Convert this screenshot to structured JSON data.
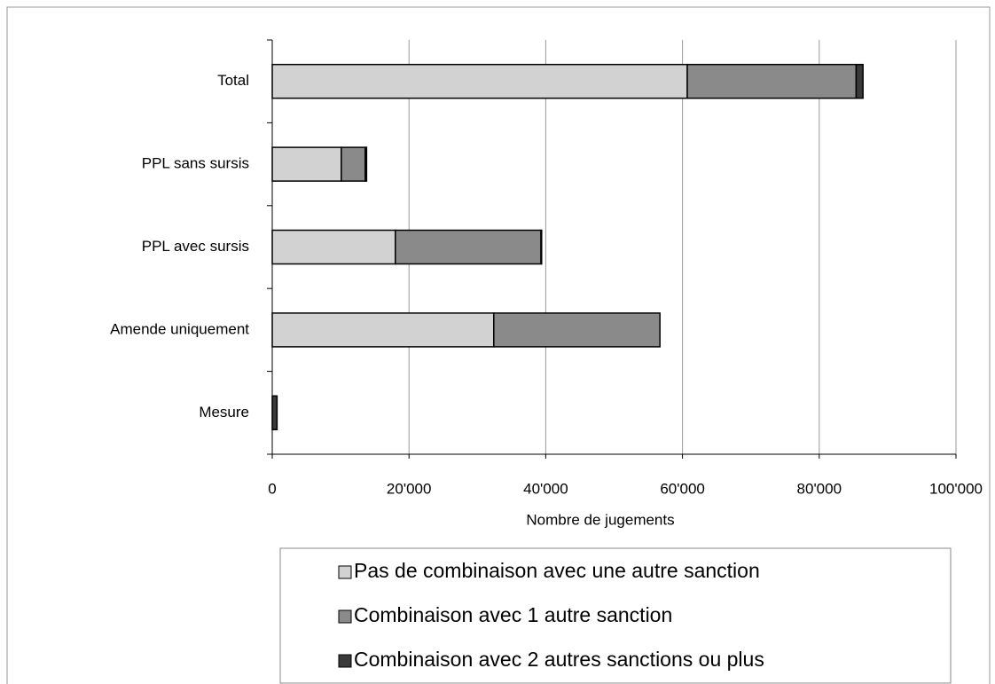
{
  "chart_data": {
    "type": "bar",
    "orientation": "horizontal",
    "stacked": true,
    "x_label": "Nombre de jugements",
    "categories": [
      "Total",
      "PPL sans sursis",
      "PPL avec sursis",
      "Amende uniquement",
      "Mesure"
    ],
    "series": [
      {
        "name": "Pas de combinaison avec une autre sanction",
        "color": "#d2d2d2",
        "values": [
          60700,
          10100,
          18000,
          32400,
          0
        ]
      },
      {
        "name": "Combinaison avec 1 autre sanction",
        "color": "#8a8a8a",
        "values": [
          24700,
          3500,
          21300,
          24300,
          0
        ]
      },
      {
        "name": "Combinaison avec 2 autres sanctions ou plus",
        "color": "#3a3a3a",
        "values": [
          1000,
          200,
          100,
          0,
          700
        ]
      }
    ],
    "xlim": [
      0,
      100000
    ],
    "xticks": [
      0,
      {
        "value": 20000,
        "label": "20'000"
      },
      {
        "value": 40000,
        "label": "40'000"
      },
      {
        "value": 60000,
        "label": "60'000"
      },
      {
        "value": 80000,
        "label": "80'000"
      },
      {
        "value": 100000,
        "label": "100'000"
      }
    ],
    "grid": true,
    "legend": "bottom"
  }
}
